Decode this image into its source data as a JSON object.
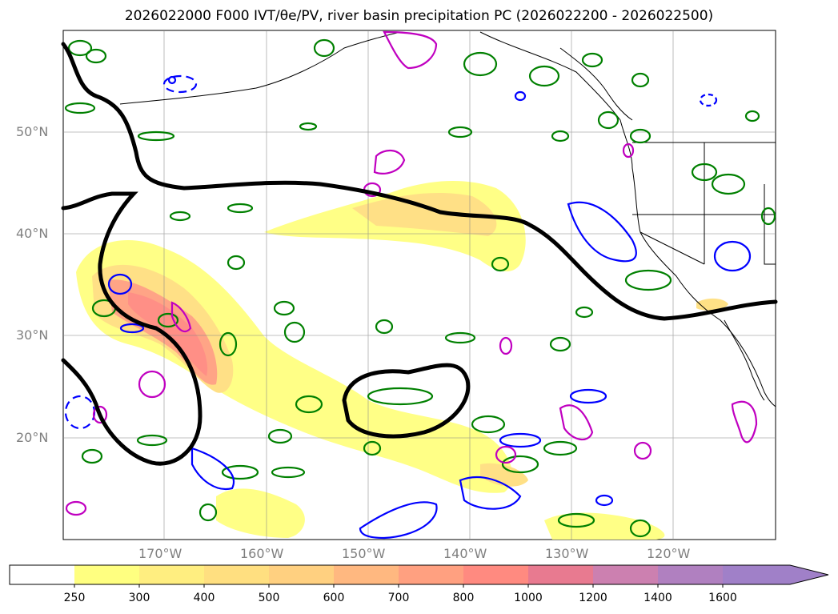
{
  "title": "2026022000 F000 IVT/θe/PV, river basin precipitation PC (2026022200 - 2026022500)",
  "lat_labels": [
    "50°N",
    "40°N",
    "30°N",
    "20°N"
  ],
  "lon_labels": [
    "170°W",
    "160°W",
    "150°W",
    "140°W",
    "130°W",
    "120°W"
  ],
  "colorbar": {
    "levels": [
      "250",
      "300",
      "400",
      "500",
      "600",
      "700",
      "800",
      "1000",
      "1200",
      "1400",
      "1600"
    ],
    "colors": [
      "#ffffff",
      "#ffff80",
      "#ffee80",
      "#ffdf80",
      "#ffd080",
      "#ffb880",
      "#ffa080",
      "#ff8a80",
      "#e87a90",
      "#cc80b0",
      "#b080c0",
      "#a080c8"
    ]
  },
  "map": {
    "lon_range": [
      "180°",
      "110°W"
    ],
    "lat_range": [
      "10°N",
      "60°N"
    ],
    "contour_colors": {
      "theta_e": "#000000",
      "pv_positive": "#008000",
      "pv_negative": "#0000ff",
      "pv_high": "#c000c0"
    }
  }
}
